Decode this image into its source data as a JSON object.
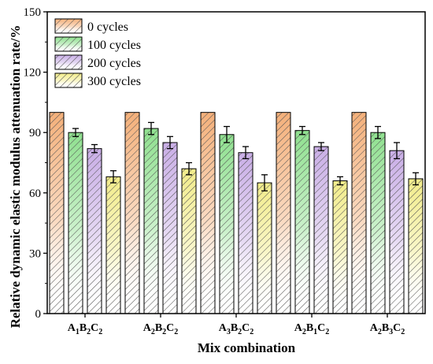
{
  "chart_data": {
    "type": "bar",
    "title": "",
    "xlabel": "Mix combination",
    "ylabel": "Relative dynamic elastic modulus attenuation rate/%",
    "ylim": [
      0,
      150
    ],
    "yticks": [
      "0",
      "30",
      "60",
      "90",
      "120",
      "150"
    ],
    "grid": false,
    "legend_position": "top-left",
    "categories": [
      {
        "base": "A",
        "s1": "1",
        "m2": "B",
        "s2": "2",
        "m3": "C",
        "s3": "2"
      },
      {
        "base": "A",
        "s1": "2",
        "m2": "B",
        "s2": "2",
        "m3": "C",
        "s3": "2"
      },
      {
        "base": "A",
        "s1": "3",
        "m2": "B",
        "s2": "2",
        "m3": "C",
        "s3": "2"
      },
      {
        "base": "A",
        "s1": "2",
        "m2": "B",
        "s2": "1",
        "m3": "C",
        "s3": "2"
      },
      {
        "base": "A",
        "s1": "2",
        "m2": "B",
        "s2": "3",
        "m3": "C",
        "s3": "2"
      }
    ],
    "series": [
      {
        "name": "0 cycles",
        "color": "#f4b07a",
        "values": [
          100,
          100,
          100,
          100,
          100
        ],
        "errors": [
          0,
          0,
          0,
          0,
          0
        ]
      },
      {
        "name": "100 cycles",
        "color": "#8fe08f",
        "values": [
          90,
          92,
          89,
          91,
          90
        ],
        "errors": [
          2,
          3,
          4,
          2,
          3
        ]
      },
      {
        "name": "200 cycles",
        "color": "#c9aee6",
        "values": [
          82,
          85,
          80,
          83,
          81
        ],
        "errors": [
          2,
          3,
          3,
          2,
          4
        ]
      },
      {
        "name": "300 cycles",
        "color": "#f2ec8a",
        "values": [
          68,
          72,
          65,
          66,
          67
        ],
        "errors": [
          3,
          3,
          4,
          2,
          3
        ]
      }
    ]
  }
}
